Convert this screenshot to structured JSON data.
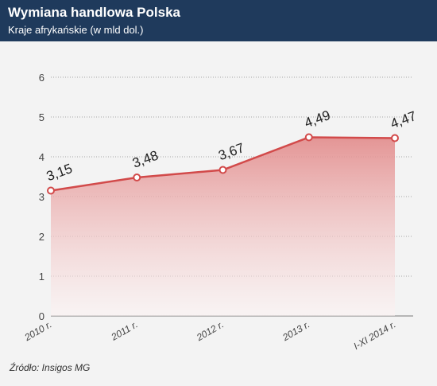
{
  "header": {
    "title": "Wymiana handlowa Polska",
    "subtitle": "Kraje afrykańskie (w mld dol.)"
  },
  "source": "Źródło: Insigos MG",
  "colors": {
    "header_bg": "#1f3a5c",
    "line": "#d24a4a",
    "area_top": "#e28a8a",
    "area_bottom": "#fdf3f3",
    "plot_bg": "#f3f3f3"
  },
  "chart_data": {
    "type": "area",
    "title": "Wymiana handlowa Polska",
    "subtitle": "Kraje afrykańskie (w mld dol.)",
    "categories": [
      "2010 r.",
      "2011 r.",
      "2012 r.",
      "2013 r.",
      "I-XI 2014 r."
    ],
    "series": [
      {
        "values": [
          3.15,
          3.48,
          3.67,
          4.49,
          4.47
        ]
      }
    ],
    "data_labels": [
      "3,15",
      "3,48",
      "3,67",
      "4,49",
      "4,47"
    ],
    "ylim": [
      0,
      6
    ],
    "yticks": [
      0,
      1,
      2,
      3,
      4,
      5,
      6
    ],
    "grid": true,
    "legend": "none"
  }
}
